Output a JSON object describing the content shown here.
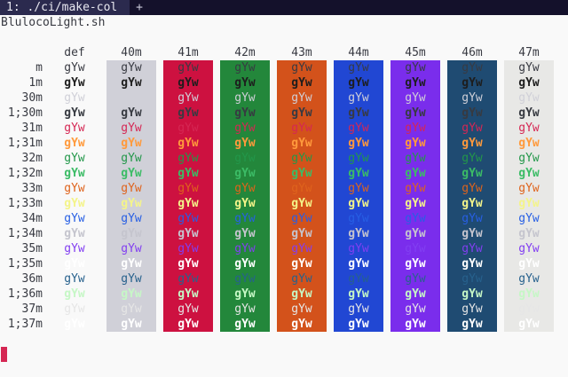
{
  "tab_bar": {
    "active_tab": "1: ./ci/make-col",
    "new_tab_glyph": "+"
  },
  "title": "BlulocoLight.sh",
  "columns": [
    {
      "label": "def",
      "bg": null
    },
    {
      "label": "40m",
      "bg": "#d0d0d8"
    },
    {
      "label": "41m",
      "bg": "#cd1140"
    },
    {
      "label": "42m",
      "bg": "#23873b"
    },
    {
      "label": "43m",
      "bg": "#d3521b"
    },
    {
      "label": "44m",
      "bg": "#2147d3"
    },
    {
      "label": "45m",
      "bg": "#7a2dec"
    },
    {
      "label": "46m",
      "bg": "#1f4b72"
    },
    {
      "label": "47m",
      "bg": "#e8e8e6"
    }
  ],
  "sample_text": "gYw",
  "rows": [
    {
      "label": "m",
      "fg": "#383a42",
      "bold": false
    },
    {
      "label": "1m",
      "fg": "#1d1d1d",
      "bold": true
    },
    {
      "label": "30m",
      "fg": "#d0d0d8",
      "bold": false
    },
    {
      "label": "1;30m",
      "fg": "#373a41",
      "bold": true
    },
    {
      "label": "31m",
      "fg": "#d52753",
      "bold": false
    },
    {
      "label": "1;31m",
      "fg": "#ff9a3c",
      "bold": true
    },
    {
      "label": "32m",
      "fg": "#23974a",
      "bold": false
    },
    {
      "label": "1;32m",
      "fg": "#3cbc66",
      "bold": true
    },
    {
      "label": "33m",
      "fg": "#df631c",
      "bold": false
    },
    {
      "label": "1;33m",
      "fg": "#f4f48a",
      "bold": true
    },
    {
      "label": "34m",
      "fg": "#275fe4",
      "bold": false
    },
    {
      "label": "1;34m",
      "fg": "#c5c5ce",
      "bold": true
    },
    {
      "label": "35m",
      "fg": "#823ff1",
      "bold": false
    },
    {
      "label": "1;35m",
      "fg": "#ffffff",
      "bold": true
    },
    {
      "label": "36m",
      "fg": "#27618d",
      "bold": false
    },
    {
      "label": "1;36m",
      "fg": "#c6f7c6",
      "bold": true
    },
    {
      "label": "37m",
      "fg": "#e6e6e6",
      "bold": false
    },
    {
      "label": "1;37m",
      "fg": "#ffffff",
      "bold": true
    }
  ],
  "colors": {
    "terminal_bg": "#f9f9f9",
    "default_fg": "#383a42",
    "tabbar_bg": "#14112b",
    "tab_active_bg": "#2b2a4e",
    "cursor": "#d52753"
  }
}
